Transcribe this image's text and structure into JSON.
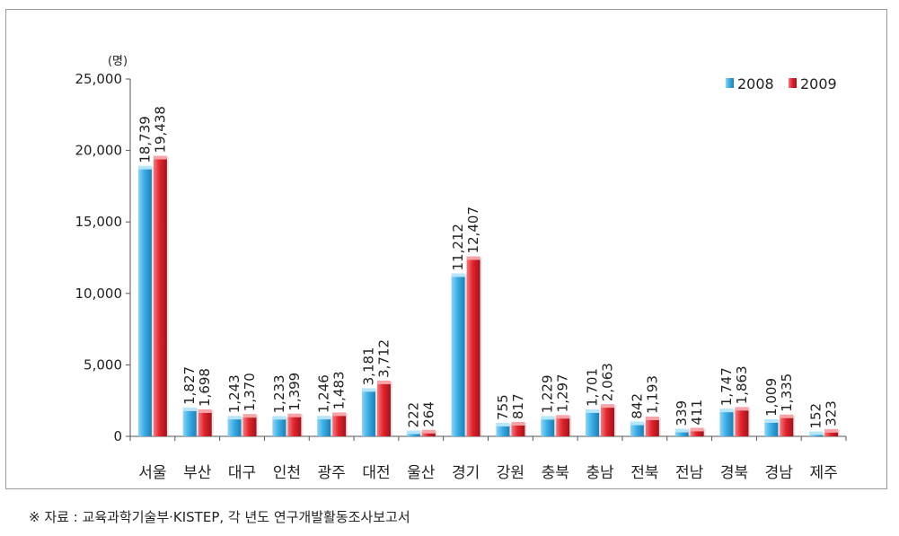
{
  "source_note": "※  자료 : 교육과학기술부·KISTEP, 각 년도 연구개발활동조사보고서",
  "chart_data": {
    "type": "bar",
    "ylabel": "(명)",
    "ylim": [
      0,
      25000
    ],
    "yticks": [
      "0",
      "5,000",
      "10,000",
      "15,000",
      "20,000",
      "25,000"
    ],
    "yticks_values": [
      0,
      5000,
      10000,
      15000,
      20000,
      25000
    ],
    "grid": false,
    "legend_position": "top-right",
    "categories": [
      "서울",
      "부산",
      "대구",
      "인천",
      "광주",
      "대전",
      "울산",
      "경기",
      "강원",
      "충북",
      "충남",
      "전북",
      "전남",
      "경북",
      "경남",
      "제주"
    ],
    "series": [
      {
        "name": "2008",
        "color": "#2e9fd8",
        "values": [
          18739,
          1827,
          1243,
          1233,
          1246,
          3181,
          222,
          11212,
          755,
          1229,
          1701,
          842,
          339,
          1747,
          1009,
          152
        ],
        "labels": [
          "18,739",
          "1,827",
          "1,243",
          "1,233",
          "1,246",
          "3,181",
          "222",
          "11,212",
          "755",
          "1,229",
          "1,701",
          "842",
          "339",
          "1,747",
          "1,009",
          "152"
        ]
      },
      {
        "name": "2009",
        "color": "#e0202a",
        "values": [
          19438,
          1698,
          1370,
          1399,
          1483,
          3712,
          264,
          12407,
          817,
          1297,
          2063,
          1193,
          411,
          1863,
          1335,
          323
        ],
        "labels": [
          "19,438",
          "1,698",
          "1,370",
          "1,399",
          "1,483",
          "3,712",
          "264",
          "12,407",
          "817",
          "1,297",
          "2,063",
          "1,193",
          "411",
          "1,863",
          "1,335",
          "323"
        ]
      }
    ]
  }
}
